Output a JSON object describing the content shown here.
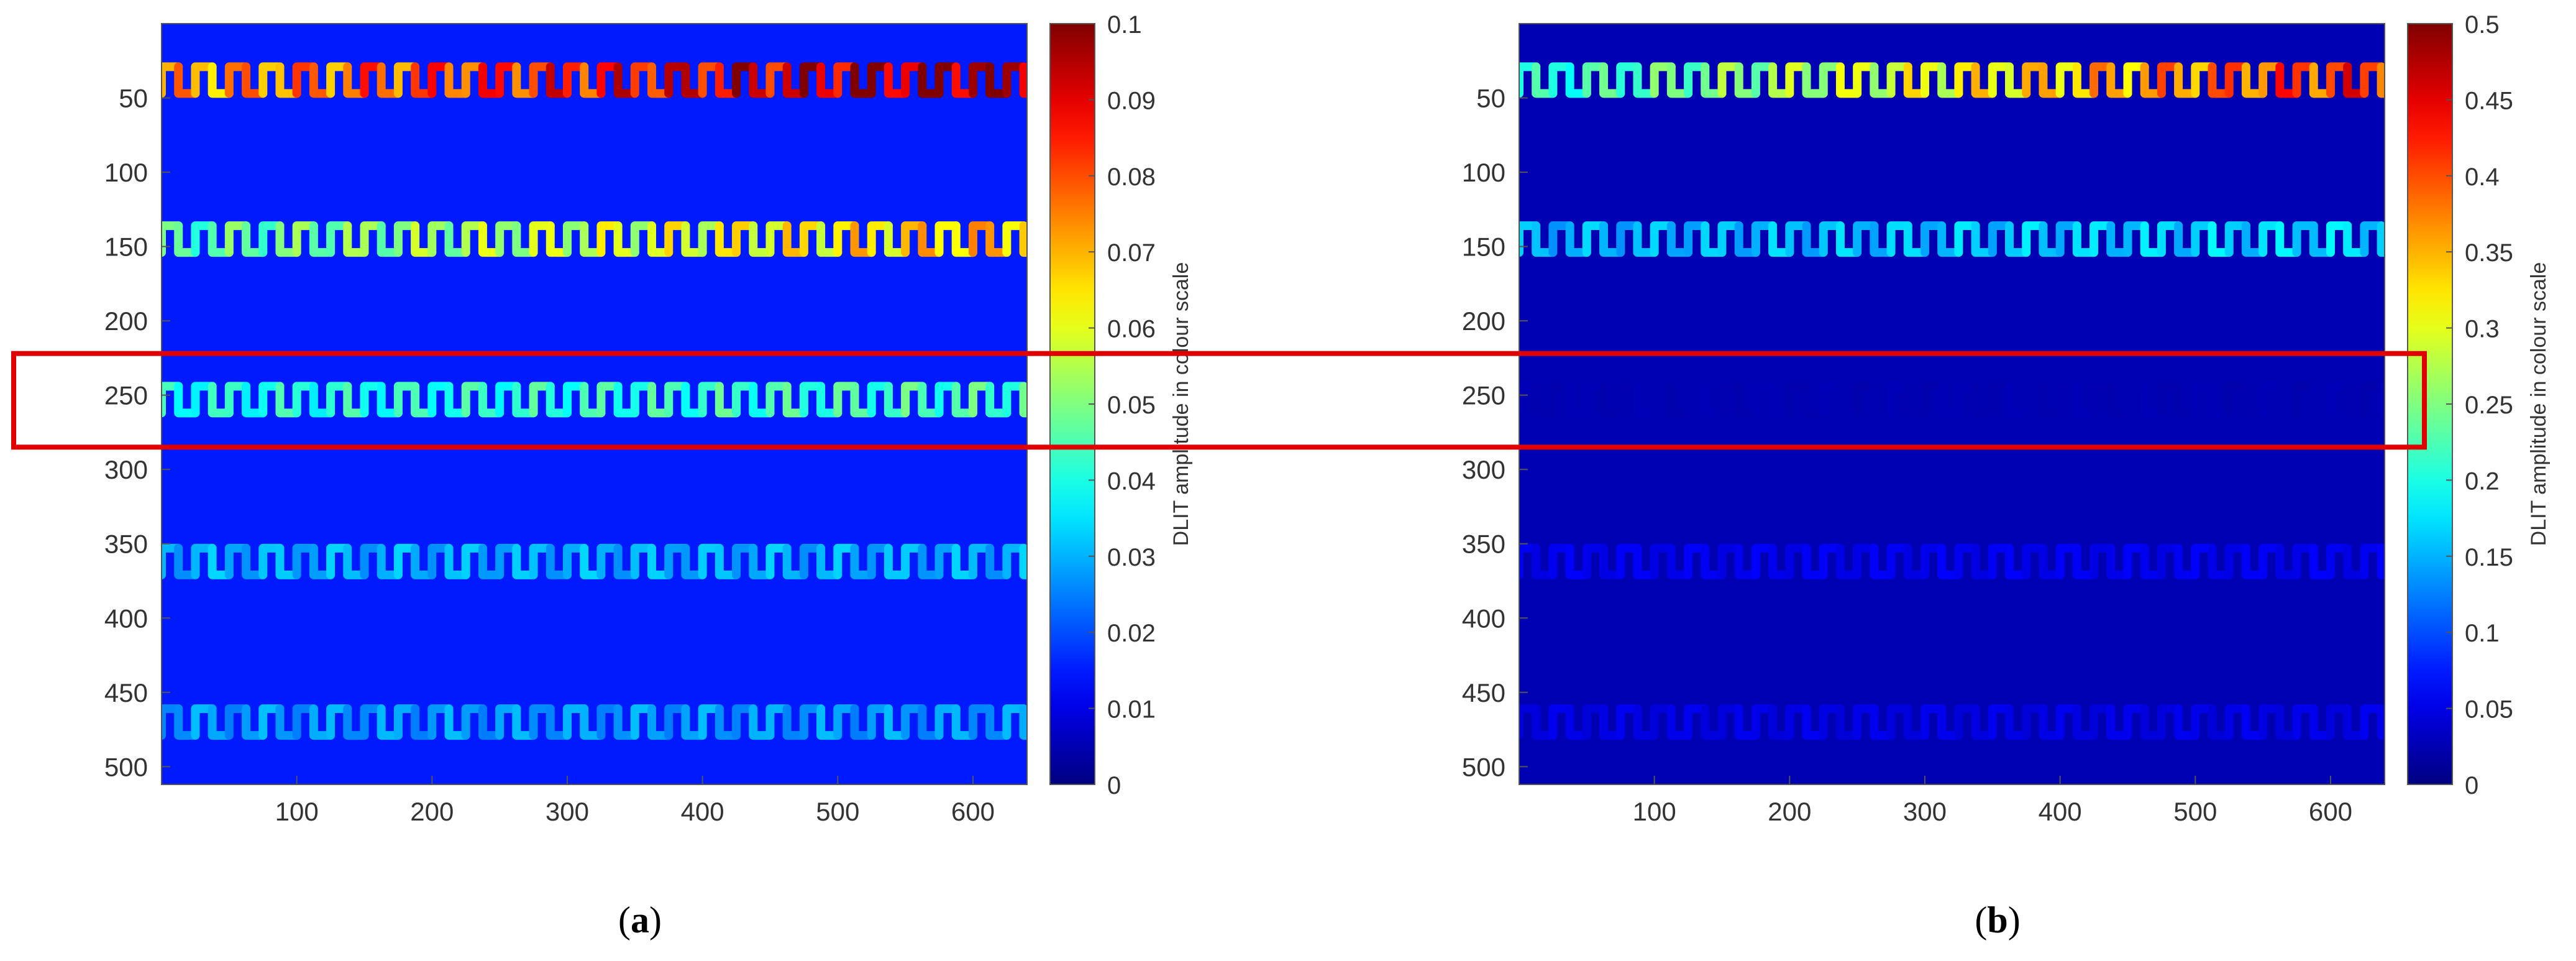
{
  "chart_data": [
    {
      "type": "heatmap",
      "panel_label": {
        "open": "(",
        "letter": "a",
        "close": ")"
      },
      "x_ticks": [
        100,
        200,
        300,
        400,
        500,
        600
      ],
      "y_ticks": [
        50,
        100,
        150,
        200,
        250,
        300,
        350,
        400,
        450,
        500
      ],
      "xlim": [
        0,
        640
      ],
      "ylim": [
        0,
        512
      ],
      "y_reversed": true,
      "colorbar": {
        "label": "DLIT amplitude in colour scale",
        "range": [
          0,
          0.1
        ],
        "ticks": [
          0,
          0.01,
          0.02,
          0.03,
          0.04,
          0.05,
          0.06,
          0.07,
          0.08,
          0.09,
          0.1
        ],
        "tick_labels": [
          "0",
          "0.01",
          "0.02",
          "0.03",
          "0.04",
          "0.05",
          "0.06",
          "0.07",
          "0.08",
          "0.09",
          "0.1"
        ],
        "colormap": "jet"
      },
      "background_value": 0.015,
      "traces": [
        {
          "y_center": 38,
          "amplitude_start": 0.07,
          "amplitude_end": 0.1
        },
        {
          "y_center": 145,
          "amplitude_start": 0.045,
          "amplitude_end": 0.07
        },
        {
          "y_center": 253,
          "amplitude_start": 0.04,
          "amplitude_end": 0.045
        },
        {
          "y_center": 362,
          "amplitude_start": 0.03,
          "amplitude_end": 0.03
        },
        {
          "y_center": 470,
          "amplitude_start": 0.028,
          "amplitude_end": 0.028
        }
      ],
      "period": 25,
      "wave_half_height": 9
    },
    {
      "type": "heatmap",
      "panel_label": {
        "open": "(",
        "letter": "b",
        "close": ")"
      },
      "x_ticks": [
        100,
        200,
        300,
        400,
        500,
        600
      ],
      "y_ticks": [
        50,
        100,
        150,
        200,
        250,
        300,
        350,
        400,
        450,
        500
      ],
      "xlim": [
        0,
        640
      ],
      "ylim": [
        0,
        512
      ],
      "y_reversed": true,
      "colorbar": {
        "label": "DLIT amplitude in colour scale",
        "range": [
          0,
          0.5
        ],
        "ticks": [
          0,
          0.05,
          0.1,
          0.15,
          0.2,
          0.25,
          0.3,
          0.35,
          0.4,
          0.45,
          0.5
        ],
        "tick_labels": [
          "0",
          "0.05",
          "0.1",
          "0.15",
          "0.2",
          "0.25",
          "0.3",
          "0.35",
          "0.4",
          "0.45",
          "0.5"
        ],
        "colormap": "jet"
      },
      "background_value": 0.025,
      "traces": [
        {
          "y_center": 38,
          "amplitude_start": 0.2,
          "amplitude_end": 0.42
        },
        {
          "y_center": 145,
          "amplitude_start": 0.15,
          "amplitude_end": 0.17
        },
        {
          "y_center": 253,
          "amplitude_start": 0.025,
          "amplitude_end": 0.025
        },
        {
          "y_center": 362,
          "amplitude_start": 0.055,
          "amplitude_end": 0.055
        },
        {
          "y_center": 470,
          "amplitude_start": 0.05,
          "amplitude_end": 0.05
        }
      ],
      "period": 25,
      "wave_half_height": 9
    }
  ],
  "highlight": {
    "color": "#e00000",
    "y_range": [
      222,
      285
    ]
  }
}
